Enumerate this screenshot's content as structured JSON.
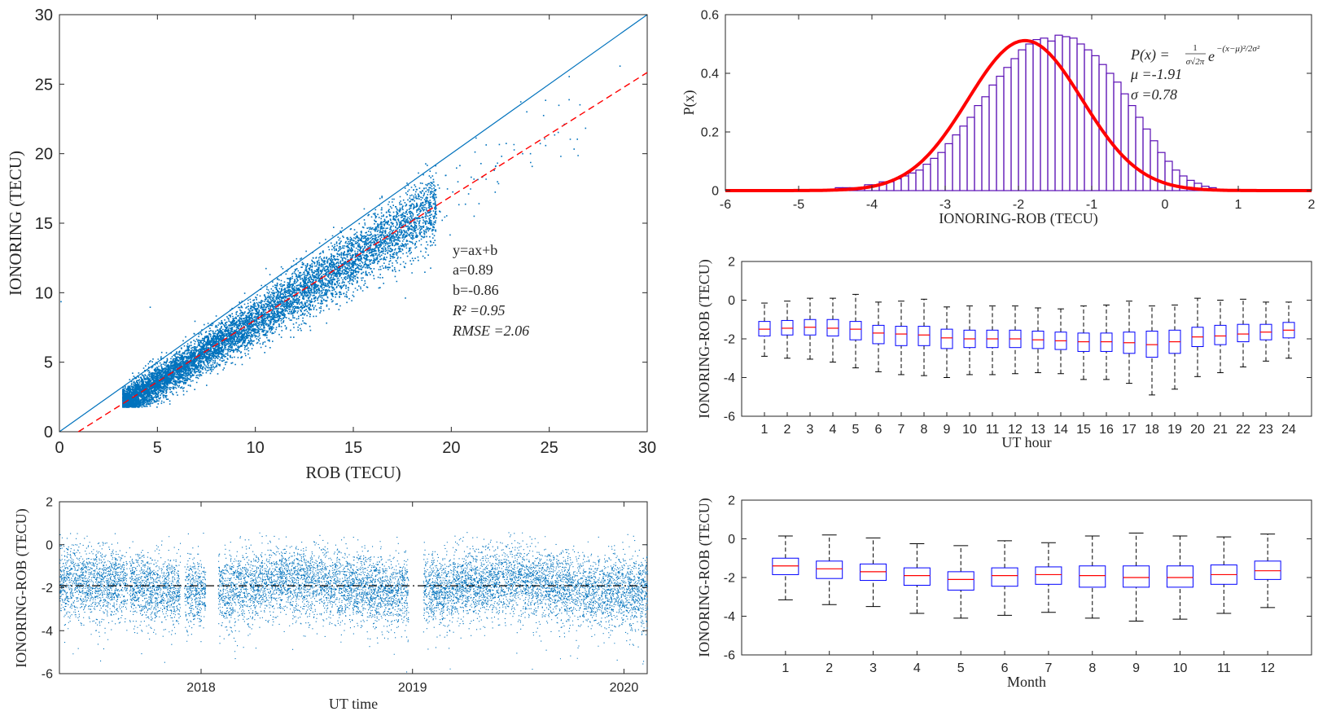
{
  "chart_data": [
    {
      "id": "scatter",
      "type": "scatter",
      "xlabel": "ROB (TECU)",
      "ylabel": "IONORING (TECU)",
      "xlim": [
        0,
        30
      ],
      "ylim": [
        0,
        30
      ],
      "xticks": [
        "0",
        "5",
        "10",
        "15",
        "20",
        "25",
        "30"
      ],
      "yticks": [
        "0",
        "5",
        "10",
        "15",
        "20",
        "25",
        "30"
      ],
      "point_color": "#0072BD",
      "fit_color": "#FF0000",
      "series": [
        {
          "name": "y=x",
          "line": [
            [
              0,
              0
            ],
            [
              30,
              30
            ]
          ],
          "style": "solid"
        },
        {
          "name": "fit",
          "line": [
            [
              0,
              -0.86
            ],
            [
              30,
              25.84
            ]
          ],
          "style": "dashed"
        }
      ],
      "annotation": [
        "y=ax+b",
        "a=0.89",
        "b=-0.86",
        "R² =0.95",
        "RMSE =2.06"
      ],
      "fit": {
        "a": 0.89,
        "b": -0.86,
        "r2": 0.95,
        "rmse": 2.06
      }
    },
    {
      "id": "histogram",
      "type": "bar",
      "xlabel": "IONORING-ROB (TECU)",
      "ylabel": "P(x)",
      "xlim": [
        -6,
        2
      ],
      "ylim": [
        0,
        0.6
      ],
      "xticks": [
        "-6",
        "-5",
        "-4",
        "-3",
        "-2",
        "-1",
        "0",
        "1",
        "2"
      ],
      "yticks": [
        "0",
        "0.2",
        "0.4",
        "0.6"
      ],
      "bar_color": "#5B0FB5",
      "curve_color": "#FF0000",
      "bin_width": 0.1,
      "bin_start": -4.5,
      "values": [
        0.01,
        0.01,
        0.01,
        0.01,
        0.02,
        0.02,
        0.03,
        0.03,
        0.04,
        0.05,
        0.06,
        0.07,
        0.09,
        0.11,
        0.13,
        0.16,
        0.19,
        0.22,
        0.25,
        0.29,
        0.32,
        0.36,
        0.39,
        0.42,
        0.45,
        0.48,
        0.5,
        0.515,
        0.52,
        0.51,
        0.53,
        0.525,
        0.52,
        0.5,
        0.48,
        0.46,
        0.43,
        0.4,
        0.37,
        0.33,
        0.29,
        0.25,
        0.21,
        0.17,
        0.13,
        0.1,
        0.07,
        0.05,
        0.035,
        0.025,
        0.015,
        0.01,
        0.005
      ],
      "gaussian": {
        "mu": -1.91,
        "sigma": 0.78
      },
      "legend_formula": "P(x) = ",
      "legend_frac_num": "1",
      "legend_frac_den": "σ√2π",
      "legend_exp": "−(x−μ)²/2σ²",
      "legend_e": "e",
      "legend_mu": "μ =-1.91",
      "legend_sigma": "σ =0.78"
    },
    {
      "id": "box_hour",
      "type": "box",
      "xlabel": "UT hour",
      "ylabel": "IONORING-ROB (TECU)",
      "ylim": [
        -6,
        2
      ],
      "yticks": [
        "-6",
        "-4",
        "-2",
        "0",
        "2"
      ],
      "categories": [
        "1",
        "2",
        "3",
        "4",
        "5",
        "6",
        "7",
        "8",
        "9",
        "10",
        "11",
        "12",
        "13",
        "14",
        "15",
        "16",
        "17",
        "18",
        "19",
        "20",
        "21",
        "22",
        "23",
        "24"
      ],
      "box_color": "#0000FF",
      "median_color": "#FF0000",
      "stats": [
        [
          -2.9,
          -1.85,
          -1.5,
          -1.1,
          -0.15
        ],
        [
          -3.0,
          -1.8,
          -1.45,
          -1.05,
          -0.05
        ],
        [
          -3.05,
          -1.8,
          -1.4,
          -1.0,
          0.1
        ],
        [
          -3.2,
          -1.85,
          -1.45,
          -1.0,
          0.1
        ],
        [
          -3.5,
          -2.05,
          -1.5,
          -1.1,
          0.3
        ],
        [
          -3.7,
          -2.25,
          -1.7,
          -1.3,
          -0.1
        ],
        [
          -3.85,
          -2.35,
          -1.75,
          -1.35,
          -0.05
        ],
        [
          -3.9,
          -2.35,
          -1.8,
          -1.35,
          0.05
        ],
        [
          -4.0,
          -2.5,
          -1.95,
          -1.5,
          -0.35
        ],
        [
          -3.85,
          -2.45,
          -2.0,
          -1.55,
          -0.3
        ],
        [
          -3.85,
          -2.45,
          -2.0,
          -1.55,
          -0.3
        ],
        [
          -3.8,
          -2.45,
          -2.0,
          -1.55,
          -0.3
        ],
        [
          -3.75,
          -2.5,
          -2.05,
          -1.6,
          -0.4
        ],
        [
          -3.8,
          -2.55,
          -2.1,
          -1.65,
          -0.45
        ],
        [
          -4.1,
          -2.65,
          -2.15,
          -1.7,
          -0.3
        ],
        [
          -4.1,
          -2.65,
          -2.15,
          -1.7,
          -0.25
        ],
        [
          -4.3,
          -2.75,
          -2.2,
          -1.65,
          -0.05
        ],
        [
          -4.9,
          -2.95,
          -2.3,
          -1.6,
          -0.3
        ],
        [
          -4.6,
          -2.75,
          -2.15,
          -1.55,
          -0.25
        ],
        [
          -3.95,
          -2.4,
          -1.9,
          -1.4,
          0.1
        ],
        [
          -3.75,
          -2.3,
          -1.85,
          -1.3,
          0.0
        ],
        [
          -3.45,
          -2.15,
          -1.75,
          -1.25,
          0.05
        ],
        [
          -3.15,
          -2.05,
          -1.65,
          -1.25,
          -0.1
        ],
        [
          -3.0,
          -1.95,
          -1.55,
          -1.15,
          -0.1
        ]
      ]
    },
    {
      "id": "timeseries",
      "type": "scatter",
      "xlabel": "UT time",
      "ylabel": "IONORING-ROB (TECU)",
      "xlim": [
        2017.33,
        2020.11
      ],
      "ylim": [
        -6,
        2
      ],
      "xticks": [
        "2018",
        "2019",
        "2020"
      ],
      "xtick_values": [
        2018,
        2019,
        2020
      ],
      "yticks": [
        "-6",
        "-4",
        "-2",
        "0",
        "2"
      ],
      "point_color": "#0072BD",
      "mean_line": -1.91,
      "mean_line_color": "#000000",
      "gaps": [
        [
          2018.02,
          2018.08
        ],
        [
          2018.98,
          2019.05
        ],
        [
          2017.9,
          2017.92
        ],
        [
          2017.65,
          2017.66
        ]
      ]
    },
    {
      "id": "box_month",
      "type": "box",
      "xlabel": "Month",
      "ylabel": "IONORING-ROB (TECU)",
      "ylim": [
        -6,
        2
      ],
      "yticks": [
        "-6",
        "-4",
        "-2",
        "0",
        "2"
      ],
      "categories": [
        "1",
        "2",
        "3",
        "4",
        "5",
        "6",
        "7",
        "8",
        "9",
        "10",
        "11",
        "12"
      ],
      "box_color": "#0000FF",
      "median_color": "#FF0000",
      "stats": [
        [
          -3.15,
          -1.85,
          -1.4,
          -1.0,
          0.15
        ],
        [
          -3.4,
          -2.05,
          -1.55,
          -1.15,
          0.2
        ],
        [
          -3.5,
          -2.15,
          -1.7,
          -1.3,
          0.05
        ],
        [
          -3.85,
          -2.4,
          -1.9,
          -1.5,
          -0.25
        ],
        [
          -4.1,
          -2.65,
          -2.1,
          -1.7,
          -0.35
        ],
        [
          -3.95,
          -2.45,
          -1.9,
          -1.5,
          -0.1
        ],
        [
          -3.8,
          -2.35,
          -1.85,
          -1.45,
          -0.2
        ],
        [
          -4.1,
          -2.5,
          -1.9,
          -1.4,
          0.15
        ],
        [
          -4.25,
          -2.5,
          -2.0,
          -1.4,
          0.3
        ],
        [
          -4.15,
          -2.5,
          -2.0,
          -1.4,
          0.15
        ],
        [
          -3.85,
          -2.35,
          -1.85,
          -1.35,
          0.1
        ],
        [
          -3.55,
          -2.1,
          -1.65,
          -1.15,
          0.25
        ]
      ]
    }
  ]
}
